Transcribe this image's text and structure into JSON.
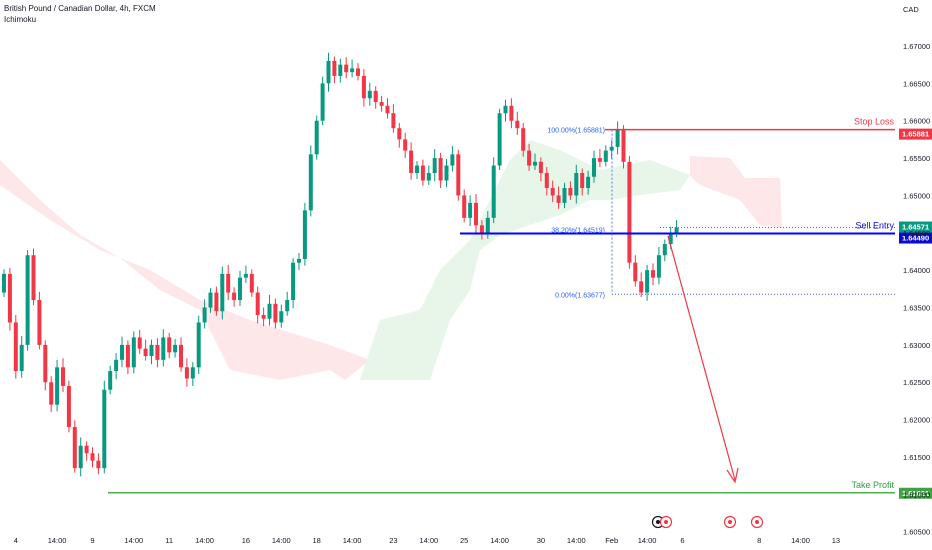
{
  "header": {
    "symbol": "British Pound / Canadian Dollar, 4h, FXCM",
    "indicator": "Ichimoku",
    "currency": "CAD"
  },
  "colors": {
    "up": "#089981",
    "down": "#f23645",
    "stop_loss": "#f23645",
    "sell_entry": "#0000ff",
    "take_profit": "#4caf50",
    "fib": "#2962ff",
    "cloud_bull": "#e8f5e9",
    "cloud_bear": "#fde7e9"
  },
  "levels": {
    "stop_loss": {
      "label": "Stop Loss",
      "price": 1.65881,
      "tag": "1.65881"
    },
    "sell_entry": {
      "label": "Sell Entry",
      "price": 1.6449,
      "tag": "1.64490"
    },
    "take_profit": {
      "label": "Take Profit",
      "price": 1.61021,
      "tag": "1.61021"
    },
    "current_price": {
      "price": 1.64571,
      "tag": "1.64571"
    }
  },
  "fib_labels": {
    "f100": "100.00%(1.65881)",
    "f382": "38.20%(1.64519)",
    "f0": "0.00%(1.63677)"
  },
  "chart_data": {
    "type": "candlestick",
    "title": "British Pound / Canadian Dollar, 4h, FXCM",
    "y_axis_side": "right",
    "ylim": [
      1.605,
      1.675
    ],
    "y_ticks": [
      "1.67000",
      "1.66500",
      "1.66000",
      "1.65500",
      "1.65000",
      "1.64500",
      "1.64000",
      "1.63500",
      "1.63000",
      "1.62500",
      "1.62000",
      "1.61500",
      "1.61000",
      "1.60500"
    ],
    "x_ticks": [
      {
        "label": "4",
        "bar": 2
      },
      {
        "label": "14:00",
        "bar": 9
      },
      {
        "label": "9",
        "bar": 15
      },
      {
        "label": "14:00",
        "bar": 22
      },
      {
        "label": "11",
        "bar": 28
      },
      {
        "label": "14:00",
        "bar": 34
      },
      {
        "label": "16",
        "bar": 41
      },
      {
        "label": "14:00",
        "bar": 47
      },
      {
        "label": "18",
        "bar": 53
      },
      {
        "label": "14:00",
        "bar": 59
      },
      {
        "label": "23",
        "bar": 66
      },
      {
        "label": "14:00",
        "bar": 72
      },
      {
        "label": "25",
        "bar": 78
      },
      {
        "label": "14:00",
        "bar": 84
      },
      {
        "label": "30",
        "bar": 91
      },
      {
        "label": "14:00",
        "bar": 97
      },
      {
        "label": "Feb",
        "bar": 103
      },
      {
        "label": "14:00",
        "bar": 109
      },
      {
        "label": "6",
        "bar": 115
      },
      {
        "label": "8",
        "bar": 128
      },
      {
        "label": "14:00",
        "bar": 135
      },
      {
        "label": "13",
        "bar": 141
      }
    ],
    "closes": [
      1.6395,
      1.633,
      1.6265,
      1.63,
      1.642,
      1.636,
      1.63,
      1.625,
      1.622,
      1.627,
      1.6245,
      1.619,
      1.6135,
      1.6165,
      1.6155,
      1.6145,
      1.6135,
      1.624,
      1.6265,
      1.628,
      1.63,
      1.627,
      1.631,
      1.6295,
      1.6285,
      1.63,
      1.628,
      1.631,
      1.629,
      1.63,
      1.627,
      1.6255,
      1.627,
      1.633,
      1.635,
      1.637,
      1.6345,
      1.6395,
      1.637,
      1.636,
      1.639,
      1.6395,
      1.637,
      1.634,
      1.6335,
      1.6355,
      1.633,
      1.6345,
      1.636,
      1.641,
      1.6415,
      1.648,
      1.6555,
      1.66,
      1.665,
      1.668,
      1.666,
      1.6675,
      1.6665,
      1.667,
      1.666,
      1.663,
      1.664,
      1.6625,
      1.662,
      1.661,
      1.659,
      1.6575,
      1.656,
      1.653,
      1.654,
      1.652,
      1.653,
      1.655,
      1.652,
      1.654,
      1.6555,
      1.65,
      1.647,
      1.649,
      1.646,
      1.645,
      1.647,
      1.654,
      1.661,
      1.662,
      1.66,
      1.659,
      1.656,
      1.654,
      1.6545,
      1.653,
      1.651,
      1.65,
      1.649,
      1.651,
      1.65,
      1.653,
      1.651,
      1.6525,
      1.655,
      1.6545,
      1.656,
      1.6565,
      1.6588,
      1.6545,
      1.641,
      1.6385,
      1.637,
      1.64,
      1.639,
      1.642,
      1.6435,
      1.645,
      1.6457
    ]
  }
}
